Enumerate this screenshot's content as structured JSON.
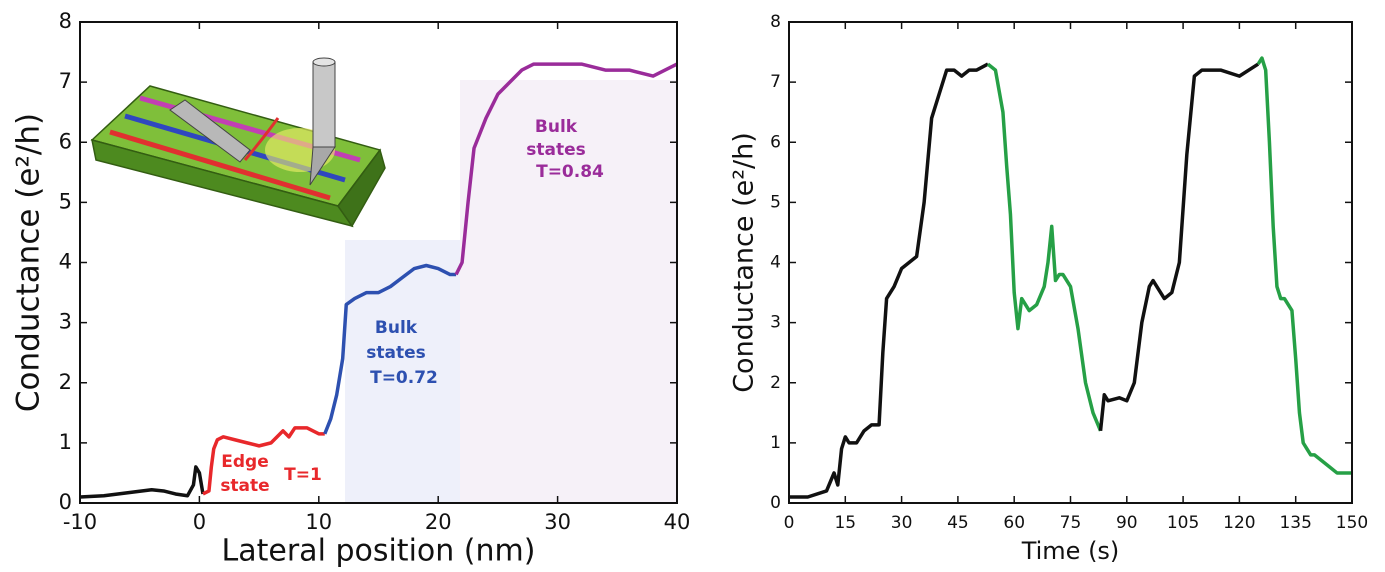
{
  "chart_data": [
    {
      "type": "line",
      "xlabel": "Lateral position (nm)",
      "ylabel": "Conductance (e²/h)",
      "xlim": [
        -10,
        40
      ],
      "xticks": [
        -10,
        0,
        10,
        20,
        30,
        40
      ],
      "ylim": [
        0,
        8
      ],
      "yticks": [
        0,
        1,
        2,
        3,
        4,
        5,
        6,
        7,
        8
      ],
      "series": [
        {
          "color": "#111111",
          "x": [
            -10,
            -8,
            -6,
            -4,
            -3,
            -2,
            -1,
            -0.5,
            -0.3,
            0,
            0.3
          ],
          "values": [
            0.1,
            0.12,
            0.17,
            0.22,
            0.2,
            0.15,
            0.12,
            0.3,
            0.6,
            0.5,
            0.15
          ]
        },
        {
          "color": "#e8282b",
          "x": [
            0.3,
            0.8,
            1,
            1.2,
            1.5,
            2,
            3,
            4,
            5,
            6,
            7,
            7.5,
            8,
            9,
            10,
            10.5
          ],
          "values": [
            0.15,
            0.2,
            0.6,
            0.9,
            1.05,
            1.1,
            1.05,
            1.0,
            0.95,
            1.0,
            1.2,
            1.1,
            1.25,
            1.25,
            1.15,
            1.15
          ]
        },
        {
          "color": "#2d50b0",
          "x": [
            10.5,
            11,
            11.5,
            12,
            12.3,
            13,
            14,
            15,
            16,
            17,
            18,
            19,
            20,
            21,
            21.5
          ],
          "values": [
            1.15,
            1.4,
            1.8,
            2.4,
            3.3,
            3.4,
            3.5,
            3.5,
            3.6,
            3.75,
            3.9,
            3.95,
            3.9,
            3.8,
            3.8
          ]
        },
        {
          "color": "#9a2c9a",
          "x": [
            21.5,
            22,
            22.5,
            23,
            24,
            25,
            26,
            27,
            28,
            30,
            32,
            34,
            36,
            38,
            40
          ],
          "values": [
            3.8,
            4.0,
            5.0,
            5.9,
            6.4,
            6.8,
            7.0,
            7.2,
            7.3,
            7.3,
            7.3,
            7.2,
            7.2,
            7.1,
            7.3
          ]
        }
      ],
      "annotations": [
        {
          "text": "Edge",
          "color": "#e8282b"
        },
        {
          "text": "state",
          "color": "#e8282b"
        },
        {
          "text": "T=1",
          "color": "#e8282b"
        },
        {
          "text": "Bulk",
          "color": "#2d50b0"
        },
        {
          "text": "states",
          "color": "#2d50b0"
        },
        {
          "text": "T=0.72",
          "color": "#2d50b0"
        },
        {
          "text": "Bulk",
          "color": "#9a2c9a"
        },
        {
          "text": "states",
          "color": "#9a2c9a"
        },
        {
          "text": "T=0.84",
          "color": "#9a2c9a"
        }
      ]
    },
    {
      "type": "line",
      "xlabel": "Time (s)",
      "ylabel": "Conductance (e²/h)",
      "xlim": [
        0,
        150
      ],
      "xticks": [
        0,
        15,
        30,
        45,
        60,
        75,
        90,
        105,
        120,
        135,
        150
      ],
      "ylim": [
        0,
        8
      ],
      "yticks": [
        0,
        1,
        2,
        3,
        4,
        5,
        6,
        7,
        8
      ],
      "series": [
        {
          "color": "#111111",
          "x": [
            0,
            5,
            10,
            12,
            13,
            14,
            15,
            16,
            18,
            20,
            22,
            24,
            25,
            26,
            28,
            30,
            32,
            34,
            36,
            38,
            40,
            42,
            44,
            46,
            48,
            50,
            53
          ],
          "values": [
            0.1,
            0.1,
            0.2,
            0.5,
            0.3,
            0.9,
            1.1,
            1.0,
            1.0,
            1.2,
            1.3,
            1.3,
            2.5,
            3.4,
            3.6,
            3.9,
            4.0,
            4.1,
            5.0,
            6.4,
            6.8,
            7.2,
            7.2,
            7.1,
            7.2,
            7.2,
            7.3
          ]
        },
        {
          "color": "#26a046",
          "x": [
            53,
            55,
            57,
            58,
            59,
            60,
            61,
            62,
            64,
            66,
            68,
            69,
            70,
            71,
            72,
            73,
            75,
            77,
            79,
            81,
            83
          ],
          "values": [
            7.3,
            7.2,
            6.5,
            5.6,
            4.8,
            3.5,
            2.9,
            3.4,
            3.2,
            3.3,
            3.6,
            4.0,
            4.6,
            3.7,
            3.8,
            3.8,
            3.6,
            2.9,
            2.0,
            1.5,
            1.2
          ]
        },
        {
          "color": "#111111",
          "x": [
            83,
            84,
            85,
            88,
            90,
            92,
            94,
            96,
            97,
            100,
            102,
            104,
            106,
            108,
            110,
            115,
            120,
            125
          ],
          "values": [
            1.2,
            1.8,
            1.7,
            1.75,
            1.7,
            2.0,
            3.0,
            3.6,
            3.7,
            3.4,
            3.5,
            4.0,
            5.8,
            7.1,
            7.2,
            7.2,
            7.1,
            7.3
          ]
        },
        {
          "color": "#26a046",
          "x": [
            125,
            126,
            127,
            128,
            129,
            130,
            131,
            132,
            134,
            135,
            136,
            137,
            138,
            139,
            140,
            142,
            144,
            146,
            148,
            150
          ],
          "values": [
            7.3,
            7.4,
            7.2,
            6.0,
            4.6,
            3.6,
            3.4,
            3.4,
            3.2,
            2.4,
            1.5,
            1.0,
            0.9,
            0.8,
            0.8,
            0.7,
            0.6,
            0.5,
            0.5,
            0.5
          ]
        }
      ]
    }
  ]
}
